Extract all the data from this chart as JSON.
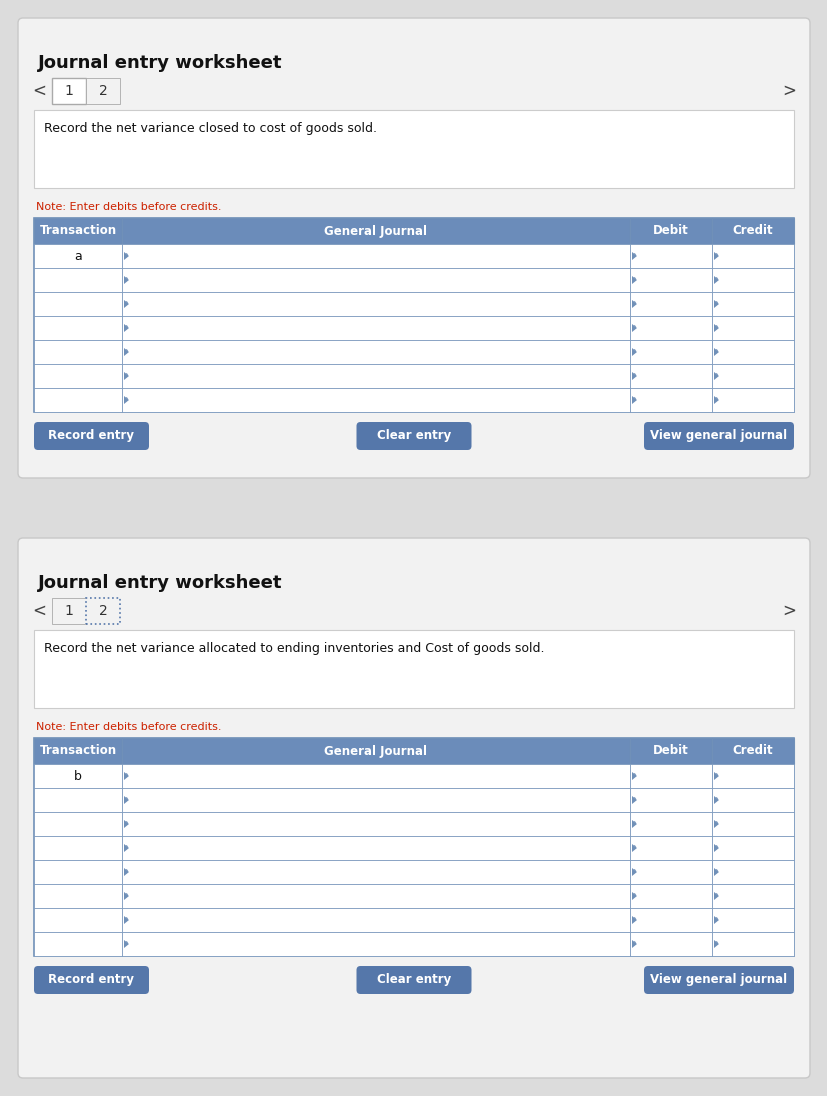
{
  "bg_color": "#dcdcdc",
  "panel_bg": "#f2f2f2",
  "panel_border": "#c8c8c8",
  "white": "#ffffff",
  "header_blue": "#6b8cba",
  "header_text": "#ffffff",
  "cell_border": "#7090b8",
  "note_color": "#cc2200",
  "button_blue": "#5577aa",
  "button_text": "#ffffff",
  "title": "Journal entry worksheet",
  "p1_instruction": "Record the net variance closed to cost of goods sold.",
  "p2_instruction": "Record the net variance allocated to ending inventories and Cost of goods sold.",
  "note": "Note: Enter debits before credits.",
  "col_headers": [
    "Transaction",
    "General Journal",
    "Debit",
    "Credit"
  ],
  "p1_trans": "a",
  "p2_trans": "b",
  "p1_rows": 7,
  "p2_rows": 8,
  "btn_record": "Record entry",
  "btn_clear": "Clear entry",
  "btn_view": "View general journal",
  "p1_active_tab": 1,
  "p2_active_tab": 2,
  "fig_w": 8.28,
  "fig_h": 10.96,
  "dpi": 100
}
